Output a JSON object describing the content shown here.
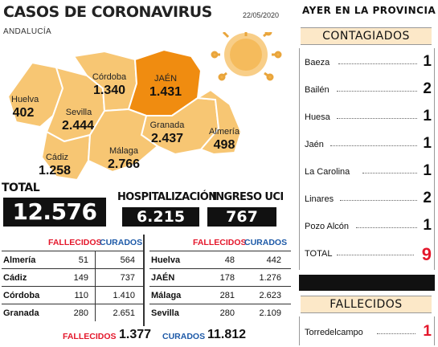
{
  "header": {
    "title": "CASOS DE CORONAVIRUS",
    "date": "22/05/2020",
    "region": "ANDALUCÍA"
  },
  "colors": {
    "map_light": "#f7c673",
    "map_highlight": "#f08c10",
    "accent_red": "#e4172b",
    "accent_blue": "#1e5aa8",
    "panel_bg": "#fce8c8"
  },
  "map": {
    "provinces": [
      {
        "name": "Huelva",
        "value": "402"
      },
      {
        "name": "Sevilla",
        "value": "2.444"
      },
      {
        "name": "Córdoba",
        "value": "1.340"
      },
      {
        "name": "JAÉN",
        "value": "1.431"
      },
      {
        "name": "Granada",
        "value": "2.437"
      },
      {
        "name": "Almería",
        "value": "498"
      },
      {
        "name": "Cádiz",
        "value": "1.258"
      },
      {
        "name": "Málaga",
        "value": "2.766"
      }
    ]
  },
  "totals": {
    "total_label": "TOTAL",
    "total_value": "12.576",
    "hosp_label": "HOSPITALIZACIÓN",
    "hosp_value": "6.215",
    "uci_label": "INGRESO UCI",
    "uci_value": "767"
  },
  "table": {
    "col_fallecidos": "FALLECIDOS",
    "col_curados": "CURADOS",
    "left_rows": [
      {
        "name": "Almería",
        "fallecidos": "51",
        "curados": "564"
      },
      {
        "name": "Cádiz",
        "fallecidos": "149",
        "curados": "737"
      },
      {
        "name": "Córdoba",
        "fallecidos": "110",
        "curados": "1.410"
      },
      {
        "name": "Granada",
        "fallecidos": "280",
        "curados": "2.651"
      }
    ],
    "right_rows": [
      {
        "name": "Huelva",
        "fallecidos": "48",
        "curados": "442"
      },
      {
        "name": "JAÉN",
        "fallecidos": "178",
        "curados": "1.276"
      },
      {
        "name": "Málaga",
        "fallecidos": "281",
        "curados": "2.623"
      },
      {
        "name": "Sevilla",
        "fallecidos": "280",
        "curados": "2.109"
      }
    ],
    "summary_fallecidos_label": "FALLECIDOS",
    "summary_fallecidos_value": "1.377",
    "summary_curados_label": "CURADOS",
    "summary_curados_value": "11.812"
  },
  "right_panel": {
    "heading": "AYER EN LA PROVINCIA",
    "contagiados_label": "CONTAGIADOS",
    "contagiados": [
      {
        "town": "Baeza",
        "count": "1"
      },
      {
        "town": "Bailén",
        "count": "2"
      },
      {
        "town": "Huesa",
        "count": "1"
      },
      {
        "town": "Jaén",
        "count": "1"
      },
      {
        "town": "La Carolina",
        "count": "1"
      },
      {
        "town": "Linares",
        "count": "2"
      },
      {
        "town": "Pozo Alcón",
        "count": "1"
      },
      {
        "town": "TOTAL",
        "count": "9"
      }
    ],
    "fallecidos_label": "FALLECIDOS",
    "fallecidos": [
      {
        "town": "Torredelcampo",
        "count": "1"
      }
    ]
  }
}
